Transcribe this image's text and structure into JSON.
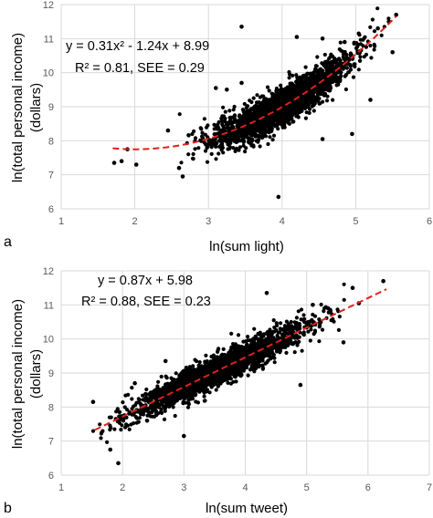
{
  "chart_data": [
    {
      "type": "scatter",
      "panel_label": "a",
      "xlabel": "ln(sum light)",
      "ylabel_line1": "ln(total personal income)",
      "ylabel_line2": "(dollars)",
      "xlim": [
        1,
        6
      ],
      "ylim": [
        6,
        12
      ],
      "xticks": [
        "1",
        "2",
        "3",
        "4",
        "5",
        "6"
      ],
      "yticks": [
        "6",
        "7",
        "8",
        "9",
        "10",
        "11",
        "12"
      ],
      "equation": "y = 0.31x² - 1.24x + 8.99",
      "stats": "R² = 0.81, SEE = 0.29",
      "fit": {
        "kind": "quadratic",
        "coef": [
          0.31,
          -1.24,
          8.99
        ],
        "x_range": [
          1.7,
          5.55
        ],
        "color": "#e0201c"
      },
      "point_color": "#000000",
      "cloud": {
        "n": 2400,
        "x_center": 4.0,
        "x_sd": 0.45,
        "x_min": 1.7,
        "x_max": 5.55,
        "residual_sd": 0.27
      },
      "outliers": [
        [
          1.72,
          7.35
        ],
        [
          1.82,
          7.4
        ],
        [
          1.9,
          7.75
        ],
        [
          2.02,
          7.3
        ],
        [
          2.65,
          6.95
        ],
        [
          2.6,
          7.2
        ],
        [
          3.45,
          11.35
        ],
        [
          3.45,
          9.7
        ],
        [
          3.95,
          6.35
        ],
        [
          4.2,
          11.05
        ],
        [
          4.55,
          11.0
        ],
        [
          4.85,
          10.9
        ],
        [
          4.55,
          8.05
        ],
        [
          4.95,
          8.2
        ],
        [
          5.2,
          9.2
        ],
        [
          5.5,
          10.6
        ],
        [
          5.55,
          11.7
        ],
        [
          5.45,
          11.5
        ],
        [
          5.3,
          11.3
        ],
        [
          3.25,
          9.5
        ],
        [
          2.45,
          8.3
        ],
        [
          3.1,
          9.55
        ]
      ]
    },
    {
      "type": "scatter",
      "panel_label": "b",
      "xlabel": "ln(sum tweet)",
      "ylabel_line1": "ln(total personal income)",
      "ylabel_line2": "(dollars)",
      "xlim": [
        1,
        7
      ],
      "ylim": [
        6,
        12
      ],
      "xticks": [
        "1",
        "2",
        "3",
        "4",
        "5",
        "6",
        "7"
      ],
      "yticks": [
        "6",
        "7",
        "8",
        "9",
        "10",
        "11",
        "12"
      ],
      "equation": "y = 0.87x + 5.98",
      "stats": "R² = 0.88, SEE = 0.23",
      "fit": {
        "kind": "linear",
        "coef": [
          0,
          0.87,
          5.98
        ],
        "x_range": [
          1.55,
          6.3
        ],
        "color": "#e0201c"
      },
      "point_color": "#000000",
      "cloud": {
        "n": 2400,
        "x_center": 3.55,
        "x_sd": 0.7,
        "x_min": 1.5,
        "x_max": 6.3,
        "residual_sd": 0.22
      },
      "outliers": [
        [
          1.52,
          8.15
        ],
        [
          1.93,
          6.35
        ],
        [
          1.8,
          6.75
        ],
        [
          1.95,
          7.85
        ],
        [
          4.35,
          11.35
        ],
        [
          5.75,
          11.5
        ],
        [
          6.25,
          11.7
        ],
        [
          5.1,
          11.0
        ],
        [
          4.9,
          8.65
        ],
        [
          5.6,
          9.9
        ],
        [
          5.35,
          10.9
        ],
        [
          2.2,
          8.7
        ],
        [
          2.7,
          9.35
        ],
        [
          3.0,
          7.15
        ],
        [
          2.4,
          7.6
        ],
        [
          5.85,
          11.05
        ]
      ]
    }
  ]
}
